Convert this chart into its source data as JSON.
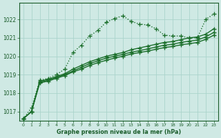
{
  "title": "Graphe pression niveau de la mer (hPa)",
  "background_color": "#cfe9e4",
  "grid_color": "#aad4cc",
  "text_color": "#1a5c2a",
  "line_color": "#1a6e2a",
  "xlim": [
    -0.5,
    23.5
  ],
  "ylim": [
    1016.5,
    1022.9
  ],
  "yticks": [
    1017,
    1018,
    1019,
    1020,
    1021,
    1022
  ],
  "xticks": [
    0,
    1,
    2,
    3,
    4,
    5,
    6,
    7,
    8,
    9,
    10,
    11,
    12,
    13,
    14,
    15,
    16,
    17,
    18,
    19,
    20,
    21,
    22,
    23
  ],
  "series": [
    {
      "x": [
        0,
        1,
        2,
        3,
        4,
        5,
        6,
        7,
        8,
        9,
        10,
        11,
        12,
        13,
        14,
        15,
        16,
        17,
        18,
        19,
        20,
        21,
        22,
        23
      ],
      "y": [
        1016.6,
        1017.2,
        1018.7,
        1018.8,
        1019.0,
        1019.3,
        1020.2,
        1020.6,
        1021.1,
        1021.4,
        1021.85,
        1022.05,
        1022.2,
        1021.9,
        1021.75,
        1021.7,
        1021.5,
        1021.15,
        1021.1,
        1021.1,
        1021.0,
        1021.0,
        1022.0,
        1022.3
      ],
      "marker": "+",
      "markersize": 4,
      "linestyle": ":",
      "linewidth": 1.0,
      "color": "#1a6e2a"
    },
    {
      "x": [
        0,
        1,
        2,
        3,
        4,
        5,
        6,
        7,
        8,
        9,
        10,
        11,
        12,
        13,
        14,
        15,
        16,
        17,
        18,
        19,
        20,
        21,
        22,
        23
      ],
      "y": [
        1016.6,
        1017.0,
        1018.65,
        1018.75,
        1018.9,
        1019.05,
        1019.3,
        1019.5,
        1019.7,
        1019.85,
        1020.0,
        1020.1,
        1020.2,
        1020.35,
        1020.45,
        1020.55,
        1020.65,
        1020.75,
        1020.8,
        1020.9,
        1021.0,
        1021.05,
        1021.2,
        1021.5
      ],
      "marker": "+",
      "markersize": 4,
      "linestyle": "-",
      "linewidth": 1.0,
      "color": "#1a6e2a"
    },
    {
      "x": [
        0,
        1,
        2,
        3,
        4,
        5,
        6,
        7,
        8,
        9,
        10,
        11,
        12,
        13,
        14,
        15,
        16,
        17,
        18,
        19,
        20,
        21,
        22,
        23
      ],
      "y": [
        1016.6,
        1017.0,
        1018.6,
        1018.7,
        1018.85,
        1019.0,
        1019.2,
        1019.4,
        1019.6,
        1019.75,
        1019.9,
        1020.0,
        1020.1,
        1020.22,
        1020.3,
        1020.4,
        1020.5,
        1020.6,
        1020.65,
        1020.75,
        1020.82,
        1020.88,
        1021.05,
        1021.3
      ],
      "marker": "+",
      "markersize": 4,
      "linestyle": "-",
      "linewidth": 1.0,
      "color": "#1a6e2a"
    },
    {
      "x": [
        0,
        1,
        2,
        3,
        4,
        5,
        6,
        7,
        8,
        9,
        10,
        11,
        12,
        13,
        14,
        15,
        16,
        17,
        18,
        19,
        20,
        21,
        22,
        23
      ],
      "y": [
        1016.6,
        1017.0,
        1018.55,
        1018.65,
        1018.8,
        1018.95,
        1019.15,
        1019.3,
        1019.5,
        1019.65,
        1019.78,
        1019.9,
        1020.0,
        1020.12,
        1020.2,
        1020.28,
        1020.38,
        1020.47,
        1020.53,
        1020.62,
        1020.68,
        1020.75,
        1020.92,
        1021.15
      ],
      "marker": "+",
      "markersize": 4,
      "linestyle": "-",
      "linewidth": 1.0,
      "color": "#1a6e2a"
    }
  ]
}
